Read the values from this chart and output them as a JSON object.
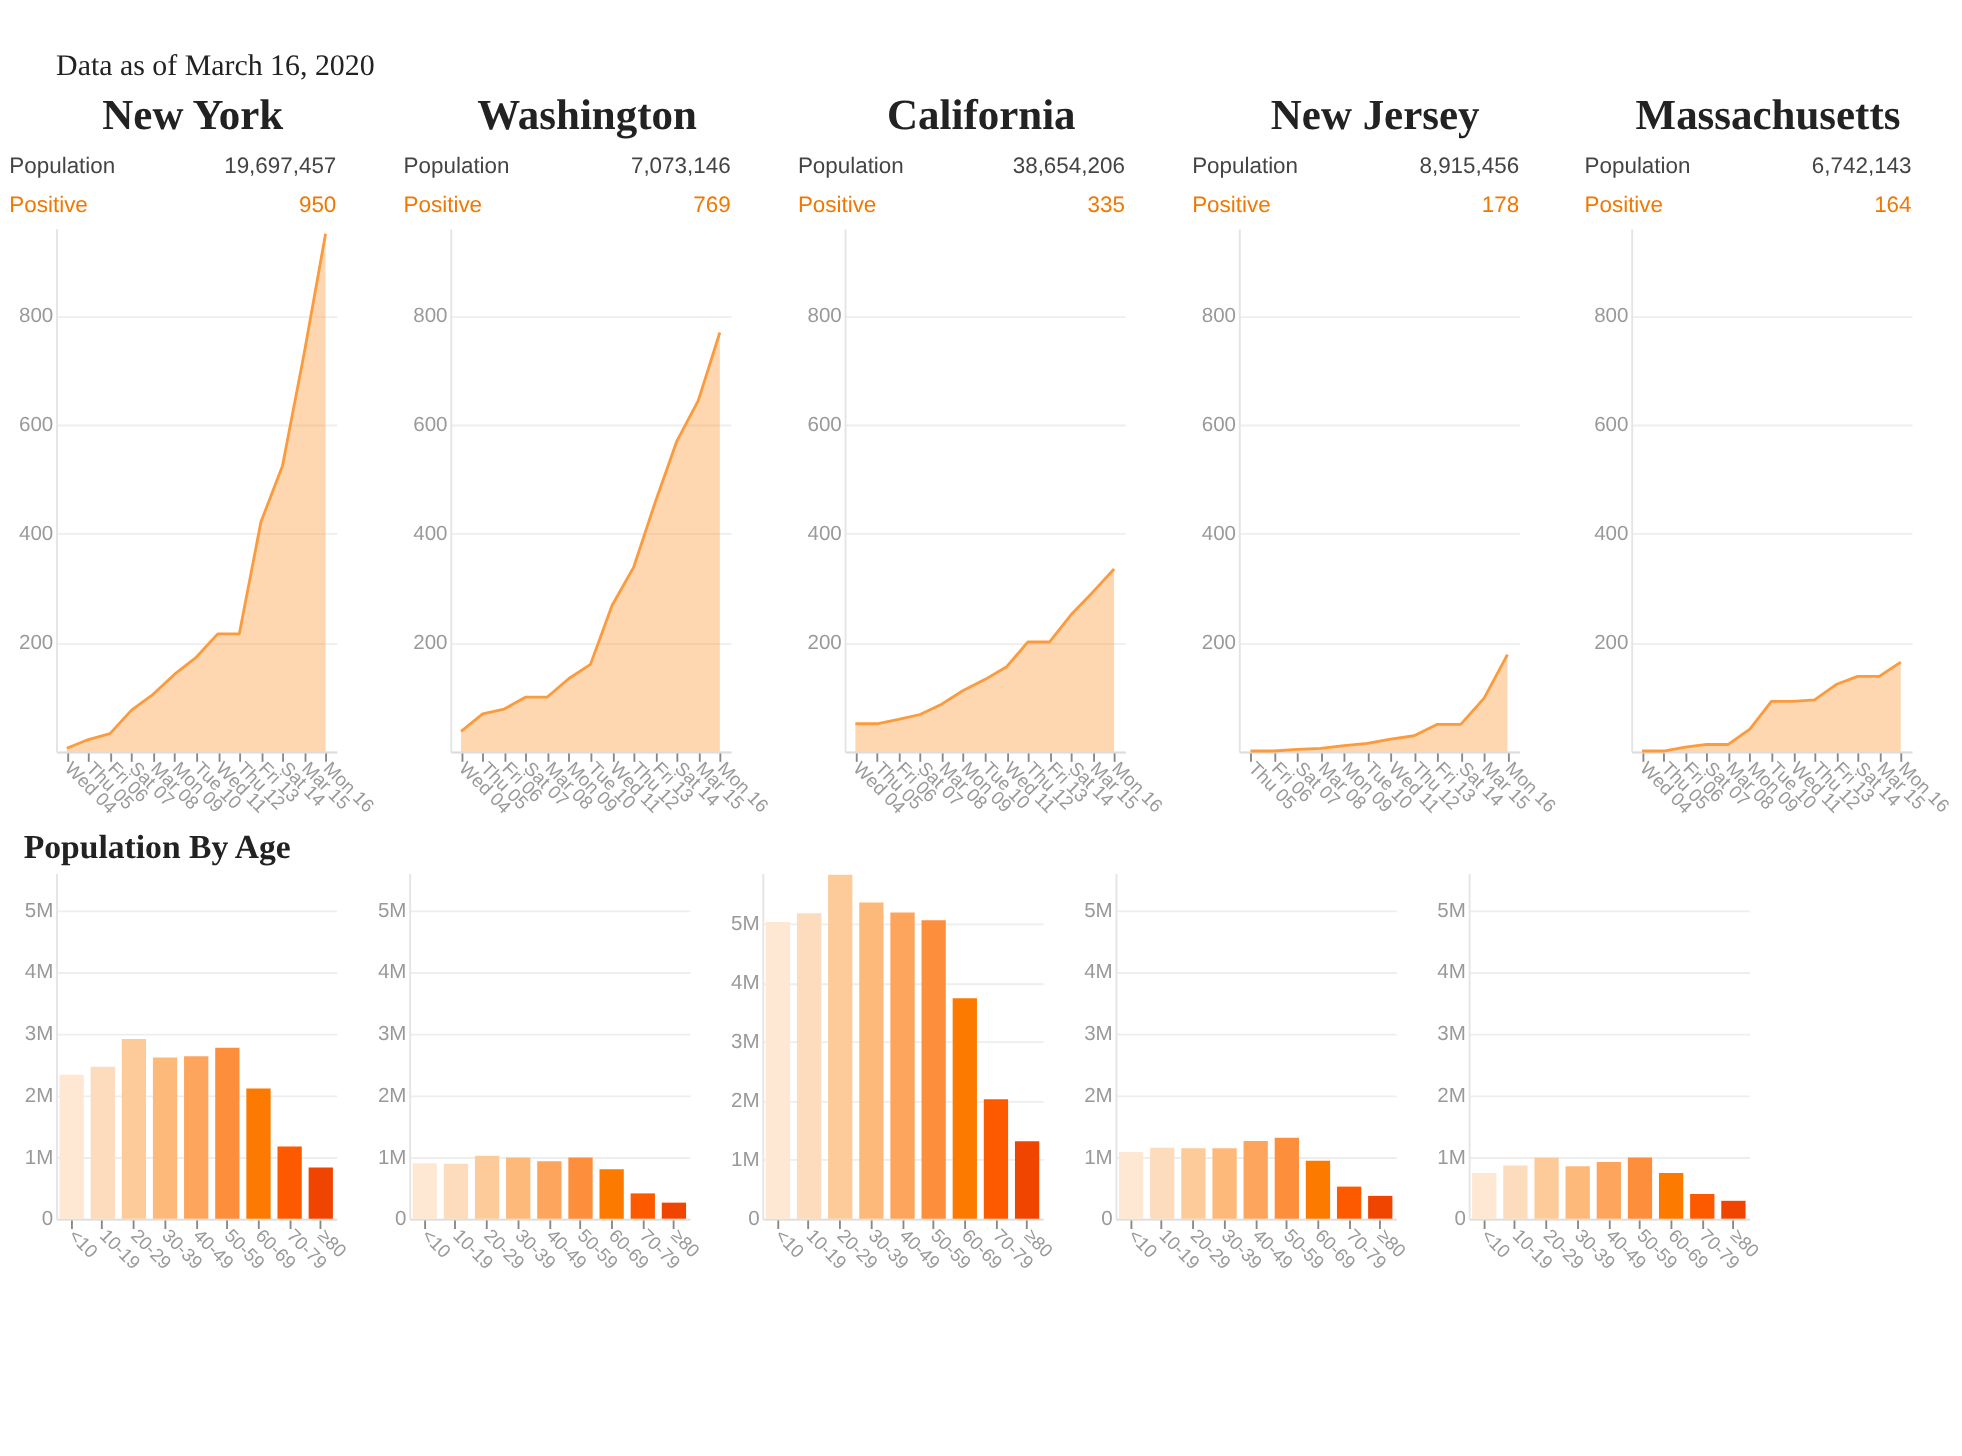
{
  "chart_data": [
    {
      "type": "other",
      "title": "Data as of March 16, 2020"
    },
    {
      "type": "area",
      "title": "New York",
      "annotations": [
        "Population",
        "19,697,457",
        "Positive",
        "950"
      ],
      "categories": [
        "Wed 04",
        "Thu 05",
        "Fri 06",
        "Sat 07",
        "Mar 08",
        "Mon 09",
        "Tue 10",
        "Wed 11",
        "Thu 12",
        "Fri 13",
        "Sat 14",
        "Mar 15",
        "Mon 16"
      ],
      "series": [
        {
          "color": "#fd9a3c",
          "values": [
            6,
            22,
            33,
            76,
            105,
            142,
            173,
            216,
            216,
            421,
            524,
            729,
            950
          ]
        }
      ],
      "ylim": [
        0,
        960
      ],
      "yticks": [
        {
          "value": 0,
          "label": null
        },
        200,
        400,
        600,
        800
      ],
      "grid": "y"
    },
    {
      "type": "area",
      "title": "Washington",
      "annotations": [
        "Population",
        "7,073,146",
        "Positive",
        "769"
      ],
      "categories": [
        "Wed 04",
        "Thu 05",
        "Fri 06",
        "Sat 07",
        "Mar 08",
        "Mon 09",
        "Tue 10",
        "Wed 11",
        "Thu 12",
        "Fri 13",
        "Sat 14",
        "Mar 15",
        "Mon 16"
      ],
      "series": [
        {
          "color": "#fd9a3c",
          "values": [
            37,
            69,
            78,
            100,
            100,
            134,
            160,
            268,
            338,
            457,
            569,
            644,
            769
          ]
        }
      ],
      "ylim": [
        0,
        960
      ],
      "yticks": [
        {
          "value": 0,
          "label": null
        },
        200,
        400,
        600,
        800
      ],
      "grid": "y"
    },
    {
      "type": "area",
      "title": "California",
      "annotations": [
        "Population",
        "38,654,206",
        "Positive",
        "335"
      ],
      "categories": [
        "Wed 04",
        "Thu 05",
        "Fri 06",
        "Sat 07",
        "Mar 08",
        "Mon 09",
        "Tue 10",
        "Wed 11",
        "Thu 12",
        "Fri 13",
        "Sat 14",
        "Mar 15",
        "Mon 16"
      ],
      "series": [
        {
          "color": "#fd9a3c",
          "values": [
            51,
            51,
            59,
            68,
            87,
            112,
            132,
            155,
            201,
            201,
            251,
            292,
            335
          ]
        }
      ],
      "ylim": [
        0,
        960
      ],
      "yticks": [
        {
          "value": 0,
          "label": null
        },
        200,
        400,
        600,
        800
      ],
      "grid": "y"
    },
    {
      "type": "area",
      "title": "New Jersey",
      "annotations": [
        "Population",
        "8,915,456",
        "Positive",
        "178"
      ],
      "categories": [
        "Thu 05",
        "Fri 06",
        "Sat 07",
        "Mar 08",
        "Mon 09",
        "Tue 10",
        "Wed 11",
        "Thu 12",
        "Fri 13",
        "Sat 14",
        "Mar 15",
        "Mon 16"
      ],
      "series": [
        {
          "color": "#fd9a3c",
          "values": [
            1,
            1,
            4,
            6,
            11,
            15,
            23,
            29,
            50,
            50,
            98,
            178
          ]
        }
      ],
      "ylim": [
        0,
        960
      ],
      "yticks": [
        {
          "value": 0,
          "label": null
        },
        200,
        400,
        600,
        800
      ],
      "grid": "y"
    },
    {
      "type": "area",
      "title": "Massachusetts",
      "annotations": [
        "Population",
        "6,742,143",
        "Positive",
        "164"
      ],
      "categories": [
        "Wed 04",
        "Thu 05",
        "Fri 06",
        "Sat 07",
        "Mar 08",
        "Mon 09",
        "Tue 10",
        "Wed 11",
        "Thu 12",
        "Fri 13",
        "Sat 14",
        "Mar 15",
        "Mon 16"
      ],
      "series": [
        {
          "color": "#fd9a3c",
          "values": [
            1,
            1,
            8,
            13,
            13,
            41,
            92,
            92,
            95,
            123,
            138,
            138,
            164
          ]
        }
      ],
      "ylim": [
        0,
        960
      ],
      "yticks": [
        {
          "value": 0,
          "label": null
        },
        200,
        400,
        600,
        800
      ],
      "grid": "y"
    },
    {
      "type": "bar",
      "title": "Population By Age",
      "categories": [
        "<10",
        "10-19",
        "20-29",
        "30-39",
        "40-49",
        "50-59",
        "60-69",
        "70-79",
        "≥80"
      ],
      "values": [
        2330000,
        2460000,
        2910000,
        2610000,
        2630000,
        2770000,
        2110000,
        1170000,
        830000
      ],
      "colors": [
        "#fee8d3",
        "#fddcbd",
        "#fdcb9a",
        "#fdb97a",
        "#fda55c",
        "#fd8f3c",
        "#fd7a00",
        "#fd5a00",
        "#f04500"
      ],
      "ylim": [
        0,
        5600000
      ],
      "yticks": [
        0,
        {
          "value": 1000000,
          "label": "1M"
        },
        {
          "value": 2000000,
          "label": "2M"
        },
        {
          "value": 3000000,
          "label": "3M"
        },
        {
          "value": 4000000,
          "label": "4M"
        },
        {
          "value": 5000000,
          "label": "5M"
        }
      ],
      "grid": "y"
    },
    {
      "type": "bar",
      "categories": [
        "<10",
        "10-19",
        "20-29",
        "30-39",
        "40-49",
        "50-59",
        "60-69",
        "70-79",
        "≥80"
      ],
      "values": [
        900000,
        890000,
        1020000,
        990000,
        930000,
        990000,
        800000,
        410000,
        260000
      ],
      "colors": [
        "#fee8d3",
        "#fddcbd",
        "#fdcb9a",
        "#fdb97a",
        "#fda55c",
        "#fd8f3c",
        "#fd7a00",
        "#fd5a00",
        "#f04500"
      ],
      "ylim": [
        0,
        5600000
      ],
      "yticks": [
        0,
        {
          "value": 1000000,
          "label": "1M"
        },
        {
          "value": 2000000,
          "label": "2M"
        },
        {
          "value": 3000000,
          "label": "3M"
        },
        {
          "value": 4000000,
          "label": "4M"
        },
        {
          "value": 5000000,
          "label": "5M"
        }
      ],
      "grid": "y"
    },
    {
      "type": "bar",
      "categories": [
        "<10",
        "10-19",
        "20-29",
        "30-39",
        "40-49",
        "50-59",
        "60-69",
        "70-79",
        "≥80"
      ],
      "values": [
        5020000,
        5170000,
        5820000,
        5350000,
        5180000,
        5050000,
        3730000,
        2020000,
        1310000
      ],
      "colors": [
        "#fee8d3",
        "#fddcbd",
        "#fdcb9a",
        "#fdb97a",
        "#fda55c",
        "#fd8f3c",
        "#fd7a00",
        "#fd5a00",
        "#f04500"
      ],
      "ylim": [
        0,
        5850000
      ],
      "yticks": [
        0,
        {
          "value": 1000000,
          "label": "1M"
        },
        {
          "value": 2000000,
          "label": "2M"
        },
        {
          "value": 3000000,
          "label": "3M"
        },
        {
          "value": 4000000,
          "label": "4M"
        },
        {
          "value": 5000000,
          "label": "5M"
        }
      ],
      "grid": "y"
    },
    {
      "type": "bar",
      "categories": [
        "<10",
        "10-19",
        "20-29",
        "30-39",
        "40-49",
        "50-59",
        "60-69",
        "70-79",
        "≥80"
      ],
      "values": [
        1080000,
        1150000,
        1140000,
        1140000,
        1260000,
        1310000,
        940000,
        520000,
        370000
      ],
      "colors": [
        "#fee8d3",
        "#fddcbd",
        "#fdcb9a",
        "#fdb97a",
        "#fda55c",
        "#fd8f3c",
        "#fd7a00",
        "#fd5a00",
        "#f04500"
      ],
      "ylim": [
        0,
        5600000
      ],
      "yticks": [
        0,
        {
          "value": 1000000,
          "label": "1M"
        },
        {
          "value": 2000000,
          "label": "2M"
        },
        {
          "value": 3000000,
          "label": "3M"
        },
        {
          "value": 4000000,
          "label": "4M"
        },
        {
          "value": 5000000,
          "label": "5M"
        }
      ],
      "grid": "y"
    },
    {
      "type": "bar",
      "categories": [
        "<10",
        "10-19",
        "20-29",
        "30-39",
        "40-49",
        "50-59",
        "60-69",
        "70-79",
        "≥80"
      ],
      "values": [
        740000,
        860000,
        990000,
        850000,
        920000,
        990000,
        740000,
        400000,
        290000
      ],
      "colors": [
        "#fee8d3",
        "#fddcbd",
        "#fdcb9a",
        "#fdb97a",
        "#fda55c",
        "#fd8f3c",
        "#fd7a00",
        "#fd5a00",
        "#f04500"
      ],
      "ylim": [
        0,
        5600000
      ],
      "yticks": [
        0,
        {
          "value": 1000000,
          "label": "1M"
        },
        {
          "value": 2000000,
          "label": "2M"
        },
        {
          "value": 3000000,
          "label": "3M"
        },
        {
          "value": 4000000,
          "label": "4M"
        },
        {
          "value": 5000000,
          "label": "5M"
        }
      ],
      "grid": "y"
    }
  ]
}
